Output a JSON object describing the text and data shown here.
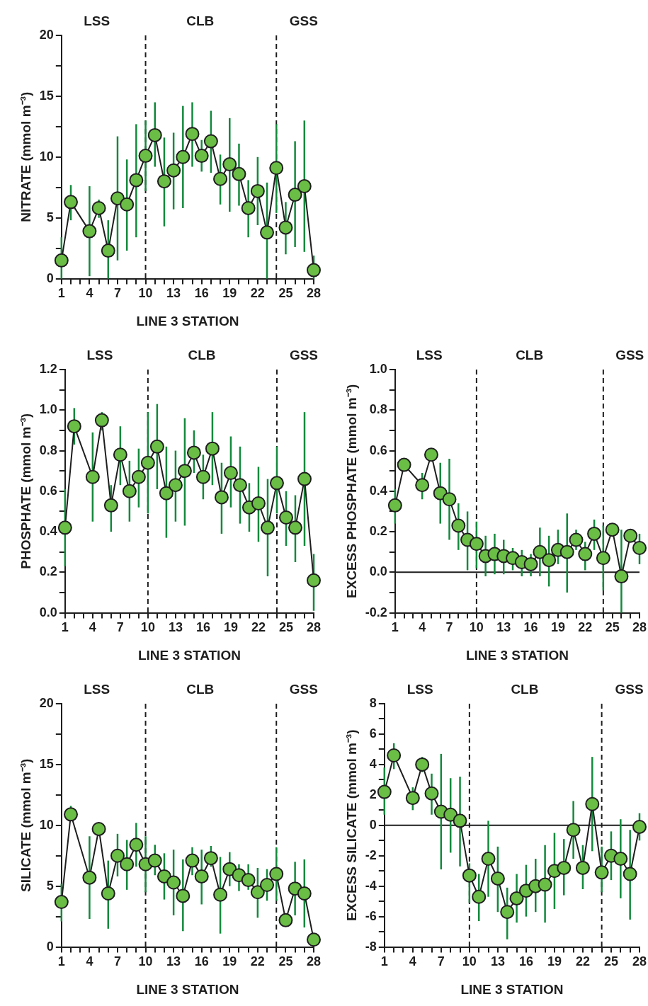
{
  "chart_data": [
    {
      "type": "line",
      "ylabel": "NITRATE (mmol m⁻³)",
      "xlabel": "LINE 3 STATION",
      "marker": "circle",
      "x": [
        1,
        2,
        4,
        5,
        6,
        7,
        8,
        9,
        10,
        11,
        12,
        13,
        14,
        15,
        16,
        17,
        18,
        19,
        20,
        21,
        22,
        23,
        24,
        25,
        26,
        27,
        28
      ],
      "xlim": [
        1,
        28
      ],
      "xticks": [
        1,
        {
          "value": 2,
          "label": null
        },
        {
          "value": 3,
          "label": null
        },
        4,
        {
          "value": 5,
          "label": null
        },
        {
          "value": 6,
          "label": null
        },
        7,
        {
          "value": 8,
          "label": null
        },
        {
          "value": 9,
          "label": null
        },
        10,
        {
          "value": 11,
          "label": null
        },
        {
          "value": 12,
          "label": null
        },
        13,
        {
          "value": 14,
          "label": null
        },
        {
          "value": 15,
          "label": null
        },
        16,
        {
          "value": 17,
          "label": null
        },
        {
          "value": 18,
          "label": null
        },
        19,
        {
          "value": 20,
          "label": null
        },
        {
          "value": 21,
          "label": null
        },
        22,
        {
          "value": 23,
          "label": null
        },
        {
          "value": 24,
          "label": null
        },
        25,
        {
          "value": 26,
          "label": null
        },
        {
          "value": 27,
          "label": null
        },
        28
      ],
      "ylim": [
        0,
        20
      ],
      "yticks": [
        0,
        {
          "value": 2.5,
          "label": null
        },
        5,
        {
          "value": 7.5,
          "label": null
        },
        10,
        {
          "value": 12.5,
          "label": null
        },
        15,
        {
          "value": 17.5,
          "label": null
        },
        20
      ],
      "series": [
        {
          "color": "#6abd45",
          "values": [
            1.5,
            6.3,
            3.9,
            5.8,
            2.3,
            6.6,
            6.1,
            8.1,
            10.1,
            11.8,
            8.0,
            8.9,
            10.0,
            11.9,
            10.1,
            11.3,
            8.2,
            9.4,
            8.6,
            5.8,
            7.2,
            3.8,
            9.1,
            4.2,
            6.9,
            7.6,
            0.7
          ],
          "errors": [
            [
              0,
              3.4
            ],
            [
              4.8,
              7.7
            ],
            [
              0.2,
              7.6
            ],
            [
              5.0,
              6.5
            ],
            [
              0,
              4.8
            ],
            [
              1.5,
              11.7
            ],
            [
              2.3,
              9.8
            ],
            [
              3.4,
              12.7
            ],
            [
              7.2,
              13.0
            ],
            [
              9.2,
              14.5
            ],
            [
              4.3,
              11.6
            ],
            [
              5.7,
              12.0
            ],
            [
              5.8,
              14.2
            ],
            [
              9.2,
              14.5
            ],
            [
              8.8,
              11.4
            ],
            [
              8.7,
              13.8
            ],
            [
              6.1,
              10.2
            ],
            [
              5.5,
              13.2
            ],
            [
              6.0,
              11.1
            ],
            [
              3.4,
              8.1
            ],
            [
              4.4,
              10.0
            ],
            [
              0,
              7.9
            ],
            [
              5.4,
              12.7
            ],
            [
              2.0,
              6.3
            ],
            [
              2.6,
              11.3
            ],
            [
              2.2,
              13.0
            ],
            [
              0,
              1.9
            ]
          ]
        }
      ],
      "ref_lines": [
        {
          "axis": "x",
          "value": 10,
          "line_style": "dashed"
        },
        {
          "axis": "x",
          "value": 24,
          "line_style": "dashed"
        }
      ],
      "annotations": [
        "LSS",
        "CLB",
        "GSS"
      ]
    },
    {
      "type": "line",
      "ylabel": "PHOSPHATE (mmol m⁻³)",
      "xlabel": "LINE 3 STATION",
      "marker": "circle",
      "x": [
        1,
        2,
        4,
        5,
        6,
        7,
        8,
        9,
        10,
        11,
        12,
        13,
        14,
        15,
        16,
        17,
        18,
        19,
        20,
        21,
        22,
        23,
        24,
        25,
        26,
        27,
        28
      ],
      "xlim": [
        1,
        28
      ],
      "xticks": [
        1,
        {
          "value": 2,
          "label": null
        },
        {
          "value": 3,
          "label": null
        },
        4,
        {
          "value": 5,
          "label": null
        },
        {
          "value": 6,
          "label": null
        },
        7,
        {
          "value": 8,
          "label": null
        },
        {
          "value": 9,
          "label": null
        },
        10,
        {
          "value": 11,
          "label": null
        },
        {
          "value": 12,
          "label": null
        },
        13,
        {
          "value": 14,
          "label": null
        },
        {
          "value": 15,
          "label": null
        },
        16,
        {
          "value": 17,
          "label": null
        },
        {
          "value": 18,
          "label": null
        },
        19,
        {
          "value": 20,
          "label": null
        },
        {
          "value": 21,
          "label": null
        },
        22,
        {
          "value": 23,
          "label": null
        },
        {
          "value": 24,
          "label": null
        },
        25,
        {
          "value": 26,
          "label": null
        },
        {
          "value": 27,
          "label": null
        },
        28
      ],
      "ylim": [
        0,
        1.2
      ],
      "yticks": [
        {
          "value": 0,
          "label": "0.0"
        },
        {
          "value": 0.1,
          "label": null
        },
        0.2,
        {
          "value": 0.3,
          "label": null
        },
        0.4,
        {
          "value": 0.5,
          "label": null
        },
        0.6,
        {
          "value": 0.7,
          "label": null
        },
        0.8,
        {
          "value": 0.9,
          "label": null
        },
        {
          "value": 1,
          "label": "1.0"
        },
        {
          "value": 1.1,
          "label": null
        },
        1.2
      ],
      "series": [
        {
          "color": "#6abd45",
          "values": [
            0.42,
            0.92,
            0.67,
            0.95,
            0.53,
            0.78,
            0.6,
            0.67,
            0.74,
            0.82,
            0.59,
            0.63,
            0.7,
            0.79,
            0.67,
            0.81,
            0.57,
            0.69,
            0.63,
            0.52,
            0.54,
            0.42,
            0.64,
            0.47,
            0.42,
            0.66,
            0.16
          ],
          "errors": [
            [
              0.23,
              0.61
            ],
            [
              0.83,
              1.01
            ],
            [
              0.45,
              0.89
            ],
            [
              0.9,
              0.99
            ],
            [
              0.4,
              0.63
            ],
            [
              0.63,
              0.92
            ],
            [
              0.45,
              0.75
            ],
            [
              0.52,
              0.81
            ],
            [
              0.49,
              0.99
            ],
            [
              0.61,
              1.03
            ],
            [
              0.37,
              0.82
            ],
            [
              0.45,
              0.8
            ],
            [
              0.43,
              0.96
            ],
            [
              0.69,
              0.9
            ],
            [
              0.56,
              0.78
            ],
            [
              0.63,
              0.99
            ],
            [
              0.39,
              0.74
            ],
            [
              0.52,
              0.87
            ],
            [
              0.44,
              0.82
            ],
            [
              0.4,
              0.64
            ],
            [
              0.35,
              0.72
            ],
            [
              0.18,
              0.66
            ],
            [
              0.49,
              0.82
            ],
            [
              0.33,
              0.6
            ],
            [
              0.25,
              0.58
            ],
            [
              0.33,
              0.99
            ],
            [
              0.01,
              0.29
            ]
          ]
        }
      ],
      "ref_lines": [
        {
          "axis": "x",
          "value": 10,
          "line_style": "dashed"
        },
        {
          "axis": "x",
          "value": 24,
          "line_style": "dashed"
        }
      ],
      "annotations": [
        "LSS",
        "CLB",
        "GSS"
      ]
    },
    {
      "type": "line",
      "ylabel": "EXCESS PHOSPHATE (mmol m⁻³)",
      "xlabel": "LINE 3 STATION",
      "marker": "circle",
      "x": [
        1,
        2,
        4,
        5,
        6,
        7,
        8,
        9,
        10,
        11,
        12,
        13,
        14,
        15,
        16,
        17,
        18,
        19,
        20,
        21,
        22,
        23,
        24,
        25,
        26,
        27,
        28
      ],
      "xlim": [
        1,
        28
      ],
      "xticks": [
        1,
        {
          "value": 2,
          "label": null
        },
        {
          "value": 3,
          "label": null
        },
        4,
        {
          "value": 5,
          "label": null
        },
        {
          "value": 6,
          "label": null
        },
        7,
        {
          "value": 8,
          "label": null
        },
        {
          "value": 9,
          "label": null
        },
        10,
        {
          "value": 11,
          "label": null
        },
        {
          "value": 12,
          "label": null
        },
        13,
        {
          "value": 14,
          "label": null
        },
        {
          "value": 15,
          "label": null
        },
        16,
        {
          "value": 17,
          "label": null
        },
        {
          "value": 18,
          "label": null
        },
        19,
        {
          "value": 20,
          "label": null
        },
        {
          "value": 21,
          "label": null
        },
        22,
        {
          "value": 23,
          "label": null
        },
        {
          "value": 24,
          "label": null
        },
        25,
        {
          "value": 26,
          "label": null
        },
        {
          "value": 27,
          "label": null
        },
        28
      ],
      "ylim": [
        -0.2,
        1
      ],
      "yticks": [
        -0.2,
        {
          "value": -0.1,
          "label": null
        },
        {
          "value": 0,
          "label": "0.0"
        },
        {
          "value": 0.1,
          "label": null
        },
        0.2,
        {
          "value": 0.3,
          "label": null
        },
        0.4,
        {
          "value": 0.5,
          "label": null
        },
        0.6,
        {
          "value": 0.7,
          "label": null
        },
        0.8,
        {
          "value": 0.9,
          "label": null
        },
        {
          "value": 1,
          "label": "1.0"
        }
      ],
      "series": [
        {
          "color": "#6abd45",
          "values": [
            0.33,
            0.53,
            0.43,
            0.58,
            0.39,
            0.36,
            0.23,
            0.16,
            0.14,
            0.08,
            0.09,
            0.08,
            0.07,
            0.05,
            0.04,
            0.1,
            0.06,
            0.11,
            0.1,
            0.16,
            0.09,
            0.19,
            0.07,
            0.21,
            -0.02,
            0.18,
            0.12
          ],
          "errors": [
            [
              0.24,
              0.41
            ],
            null,
            [
              0.36,
              0.49
            ],
            null,
            [
              0.24,
              0.54
            ],
            [
              0.16,
              0.56
            ],
            [
              0.11,
              0.34
            ],
            [
              0.01,
              0.3
            ],
            [
              0.02,
              0.25
            ],
            [
              -0.02,
              0.18
            ],
            [
              -0.01,
              0.19
            ],
            [
              -0.01,
              0.16
            ],
            [
              0.01,
              0.12
            ],
            [
              -0.02,
              0.11
            ],
            [
              -0.02,
              0.09
            ],
            [
              -0.02,
              0.22
            ],
            [
              -0.07,
              0.18
            ],
            [
              0.04,
              0.21
            ],
            [
              -0.1,
              0.29
            ],
            [
              0.11,
              0.21
            ],
            [
              0.01,
              0.15
            ],
            [
              0.11,
              0.26
            ],
            [
              -0.09,
              0.23
            ],
            null,
            [
              -0.2,
              0.21
            ],
            null,
            [
              0.04,
              0.19
            ]
          ]
        }
      ],
      "ref_lines": [
        {
          "axis": "y",
          "value": 0,
          "line_style": "solid"
        },
        {
          "axis": "x",
          "value": 10,
          "line_style": "dashed"
        },
        {
          "axis": "x",
          "value": 24,
          "line_style": "dashed"
        }
      ],
      "annotations": [
        "LSS",
        "CLB",
        "GSS"
      ]
    },
    {
      "type": "line",
      "ylabel": "SILICATE (mmol m⁻³)",
      "xlabel": "LINE 3 STATION",
      "marker": "circle",
      "x": [
        1,
        2,
        4,
        5,
        6,
        7,
        8,
        9,
        10,
        11,
        12,
        13,
        14,
        15,
        16,
        17,
        18,
        19,
        20,
        21,
        22,
        23,
        24,
        25,
        26,
        27,
        28
      ],
      "xlim": [
        1,
        28
      ],
      "xticks": [
        1,
        {
          "value": 2,
          "label": null
        },
        {
          "value": 3,
          "label": null
        },
        4,
        {
          "value": 5,
          "label": null
        },
        {
          "value": 6,
          "label": null
        },
        7,
        {
          "value": 8,
          "label": null
        },
        {
          "value": 9,
          "label": null
        },
        10,
        {
          "value": 11,
          "label": null
        },
        {
          "value": 12,
          "label": null
        },
        13,
        {
          "value": 14,
          "label": null
        },
        {
          "value": 15,
          "label": null
        },
        16,
        {
          "value": 17,
          "label": null
        },
        {
          "value": 18,
          "label": null
        },
        19,
        {
          "value": 20,
          "label": null
        },
        {
          "value": 21,
          "label": null
        },
        22,
        {
          "value": 23,
          "label": null
        },
        {
          "value": 24,
          "label": null
        },
        25,
        {
          "value": 26,
          "label": null
        },
        {
          "value": 27,
          "label": null
        },
        28
      ],
      "ylim": [
        0,
        20
      ],
      "yticks": [
        0,
        {
          "value": 2.5,
          "label": null
        },
        5,
        {
          "value": 7.5,
          "label": null
        },
        10,
        {
          "value": 12.5,
          "label": null
        },
        15,
        {
          "value": 17.5,
          "label": null
        },
        20
      ],
      "series": [
        {
          "color": "#6abd45",
          "values": [
            3.7,
            10.9,
            5.7,
            9.7,
            4.4,
            7.5,
            6.8,
            8.4,
            6.8,
            7.1,
            5.8,
            5.3,
            4.2,
            7.1,
            5.8,
            7.3,
            4.3,
            6.4,
            5.9,
            5.5,
            4.5,
            5.1,
            6.0,
            2.2,
            4.8,
            4.4,
            0.6
          ],
          "errors": [
            [
              2.1,
              5.2
            ],
            [
              10.5,
              11.6
            ],
            [
              2.3,
              9.1
            ],
            null,
            [
              1.5,
              7.1
            ],
            [
              5.8,
              9.3
            ],
            [
              4.7,
              8.8
            ],
            [
              6.6,
              10.2
            ],
            [
              4.5,
              9.1
            ],
            [
              5.9,
              8.4
            ],
            [
              3.9,
              7.7
            ],
            [
              2.6,
              8.0
            ],
            [
              1.3,
              7.2
            ],
            [
              5.9,
              8.2
            ],
            [
              3.5,
              8.0
            ],
            [
              6.6,
              8.3
            ],
            [
              1.1,
              7.4
            ],
            [
              5.0,
              7.8
            ],
            [
              4.6,
              6.8
            ],
            [
              4.7,
              6.8
            ],
            [
              2.4,
              6.5
            ],
            [
              3.8,
              6.4
            ],
            [
              3.8,
              8.2
            ],
            null,
            [
              2.6,
              7.0
            ],
            [
              1.6,
              7.2
            ],
            null
          ]
        }
      ],
      "ref_lines": [
        {
          "axis": "x",
          "value": 10,
          "line_style": "dashed"
        },
        {
          "axis": "x",
          "value": 24,
          "line_style": "dashed"
        }
      ],
      "annotations": [
        "LSS",
        "CLB",
        "GSS"
      ]
    },
    {
      "type": "line",
      "ylabel": "EXCESS SILICATE (mmol m⁻³)",
      "xlabel": "LINE 3 STATION",
      "marker": "circle",
      "x": [
        1,
        2,
        4,
        5,
        6,
        7,
        8,
        9,
        10,
        11,
        12,
        13,
        14,
        15,
        16,
        17,
        18,
        19,
        20,
        21,
        22,
        23,
        24,
        25,
        26,
        27,
        28
      ],
      "xlim": [
        1,
        28
      ],
      "xticks": [
        1,
        {
          "value": 2,
          "label": null
        },
        {
          "value": 3,
          "label": null
        },
        4,
        {
          "value": 5,
          "label": null
        },
        {
          "value": 6,
          "label": null
        },
        7,
        {
          "value": 8,
          "label": null
        },
        {
          "value": 9,
          "label": null
        },
        10,
        {
          "value": 11,
          "label": null
        },
        {
          "value": 12,
          "label": null
        },
        13,
        {
          "value": 14,
          "label": null
        },
        {
          "value": 15,
          "label": null
        },
        16,
        {
          "value": 17,
          "label": null
        },
        {
          "value": 18,
          "label": null
        },
        19,
        {
          "value": 20,
          "label": null
        },
        {
          "value": 21,
          "label": null
        },
        22,
        {
          "value": 23,
          "label": null
        },
        {
          "value": 24,
          "label": null
        },
        25,
        {
          "value": 26,
          "label": null
        },
        {
          "value": 27,
          "label": null
        },
        28
      ],
      "ylim": [
        -8,
        8
      ],
      "yticks": [
        -8,
        {
          "value": -7,
          "label": null
        },
        -6,
        {
          "value": -5,
          "label": null
        },
        -4,
        {
          "value": -3,
          "label": null
        },
        -2,
        {
          "value": -1,
          "label": null
        },
        0,
        {
          "value": 1,
          "label": null
        },
        2,
        {
          "value": 3,
          "label": null
        },
        4,
        {
          "value": 5,
          "label": null
        },
        6,
        {
          "value": 7,
          "label": null
        },
        8
      ],
      "series": [
        {
          "color": "#6abd45",
          "values": [
            2.2,
            4.6,
            1.8,
            4.0,
            2.1,
            0.9,
            0.7,
            0.3,
            -3.3,
            -4.7,
            -2.2,
            -3.5,
            -5.7,
            -4.8,
            -4.3,
            -4.0,
            -3.9,
            -3.0,
            -2.8,
            -0.3,
            -2.8,
            1.4,
            -3.1,
            -2.0,
            -2.2,
            -3.2,
            -0.1
          ],
          "errors": [
            [
              0.7,
              3.8
            ],
            [
              3.7,
              5.4
            ],
            [
              1.0,
              2.5
            ],
            [
              3.5,
              4.5
            ],
            [
              0.7,
              3.4
            ],
            [
              -2.9,
              4.7
            ],
            [
              -1.8,
              3.1
            ],
            [
              -2.7,
              3.2
            ],
            [
              -5.1,
              -2.5
            ],
            [
              -6.3,
              -3.2
            ],
            [
              -4.7,
              0.3
            ],
            [
              -5.7,
              -1.4
            ],
            [
              -7.5,
              -4.1
            ],
            [
              -6.4,
              -3.2
            ],
            [
              -6.0,
              -2.6
            ],
            [
              -5.7,
              -2.2
            ],
            [
              -6.4,
              -1.3
            ],
            [
              -5.5,
              -0.5
            ],
            [
              -4.6,
              -0.9
            ],
            [
              -2.2,
              1.6
            ],
            [
              -4.2,
              -1.3
            ],
            [
              -1.7,
              4.5
            ],
            [
              -4.4,
              -1.4
            ],
            [
              -3.6,
              -0.4
            ],
            [
              -4.8,
              0.4
            ],
            [
              -6.2,
              -0.3
            ],
            [
              -1.0,
              0.8
            ]
          ]
        }
      ],
      "ref_lines": [
        {
          "axis": "y",
          "value": 0,
          "line_style": "solid"
        },
        {
          "axis": "x",
          "value": 10,
          "line_style": "dashed"
        },
        {
          "axis": "x",
          "value": 24,
          "line_style": "dashed"
        }
      ],
      "annotations": [
        "LSS",
        "CLB",
        "GSS"
      ]
    }
  ]
}
